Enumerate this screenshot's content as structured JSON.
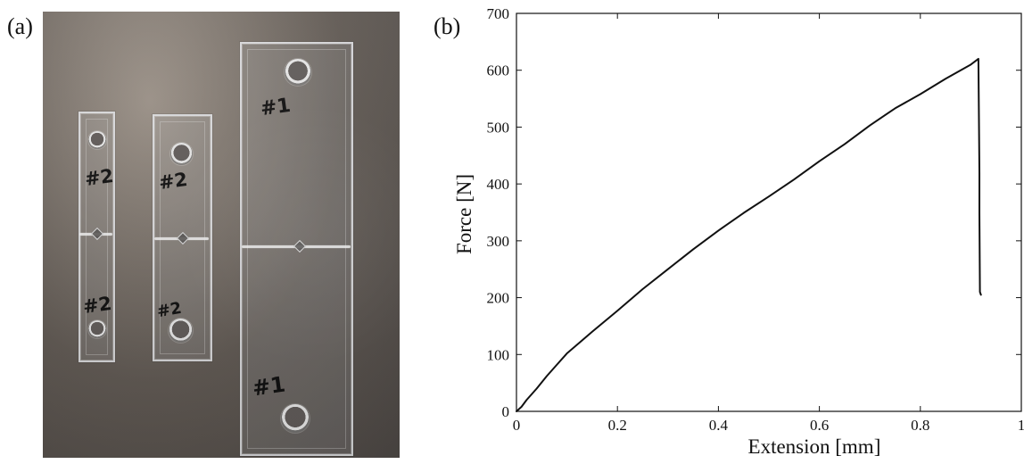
{
  "panel_labels": {
    "a": "(a)",
    "b": "(b)"
  },
  "photo": {
    "markings": {
      "small_1_top": "#2",
      "small_1_bottom": "#2",
      "small_2_top": "#2",
      "small_2_bottom": "#2",
      "large_top": "#1",
      "large_bottom": "#1"
    }
  },
  "chart_data": {
    "type": "line",
    "title": "",
    "xlabel": "Extension [mm]",
    "ylabel": "Force [N]",
    "xlim": [
      0,
      1
    ],
    "ylim": [
      0,
      700
    ],
    "xticks": [
      0,
      0.2,
      0.4,
      0.6,
      0.8,
      1
    ],
    "yticks": [
      0,
      100,
      200,
      300,
      400,
      500,
      600,
      700
    ],
    "xtick_labels": [
      "0",
      "0.2",
      "0.4",
      "0.6",
      "0.8",
      "1"
    ],
    "ytick_labels": [
      "0",
      "100",
      "200",
      "300",
      "400",
      "500",
      "600",
      "700"
    ],
    "grid": false,
    "legend": "none",
    "series": [
      {
        "x": [
          0,
          0.01,
          0.02,
          0.04,
          0.06,
          0.08,
          0.1,
          0.15,
          0.2,
          0.25,
          0.3,
          0.35,
          0.4,
          0.45,
          0.5,
          0.55,
          0.6,
          0.65,
          0.7,
          0.75,
          0.8,
          0.85,
          0.9,
          0.915,
          0.917,
          0.917,
          0.918,
          0.92
        ],
        "y": [
          0,
          8,
          20,
          40,
          62,
          82,
          102,
          140,
          177,
          215,
          250,
          285,
          318,
          349,
          378,
          408,
          440,
          470,
          503,
          533,
          558,
          585,
          610,
          620,
          420,
          350,
          210,
          205
        ]
      }
    ],
    "colors": {
      "line": "#111111",
      "axes": "#111111"
    }
  }
}
